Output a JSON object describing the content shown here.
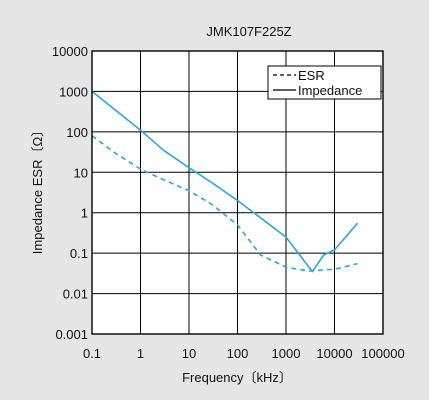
{
  "chart_data": {
    "type": "line",
    "title": "JMK107F225Z",
    "xlabel": "Frequency〔kHz〕",
    "ylabel": "Impedance ESR〔Ω〕",
    "x_scale": "log",
    "y_scale": "log",
    "xlim": [
      0.1,
      100000
    ],
    "ylim": [
      0.001,
      10000
    ],
    "x_ticks": [
      "0.1",
      "1",
      "10",
      "100",
      "1000",
      "10000",
      "100000"
    ],
    "y_ticks": [
      "10000",
      "1000",
      "100",
      "10",
      "1",
      "0.1",
      "0.01",
      "0.001"
    ],
    "grid": true,
    "legend_position": "top-right",
    "series": [
      {
        "name": "ESR",
        "style": "dashed",
        "color": "#29a9d8",
        "points": [
          [
            0.1,
            80
          ],
          [
            0.3,
            30
          ],
          [
            1,
            12
          ],
          [
            3,
            6.5
          ],
          [
            10,
            3.5
          ],
          [
            30,
            1.6
          ],
          [
            100,
            0.5
          ],
          [
            300,
            0.09
          ],
          [
            1000,
            0.045
          ],
          [
            3000,
            0.036
          ],
          [
            10000,
            0.04
          ],
          [
            30000,
            0.055
          ]
        ]
      },
      {
        "name": "Impedance",
        "style": "solid",
        "color": "#29a9d8",
        "points": [
          [
            0.1,
            1000
          ],
          [
            0.3,
            350
          ],
          [
            1,
            110
          ],
          [
            3,
            35
          ],
          [
            10,
            13
          ],
          [
            30,
            5.5
          ],
          [
            100,
            2
          ],
          [
            300,
            0.75
          ],
          [
            1000,
            0.25
          ],
          [
            3500,
            0.035
          ],
          [
            6000,
            0.09
          ],
          [
            10000,
            0.12
          ],
          [
            30000,
            0.55
          ]
        ]
      }
    ]
  }
}
